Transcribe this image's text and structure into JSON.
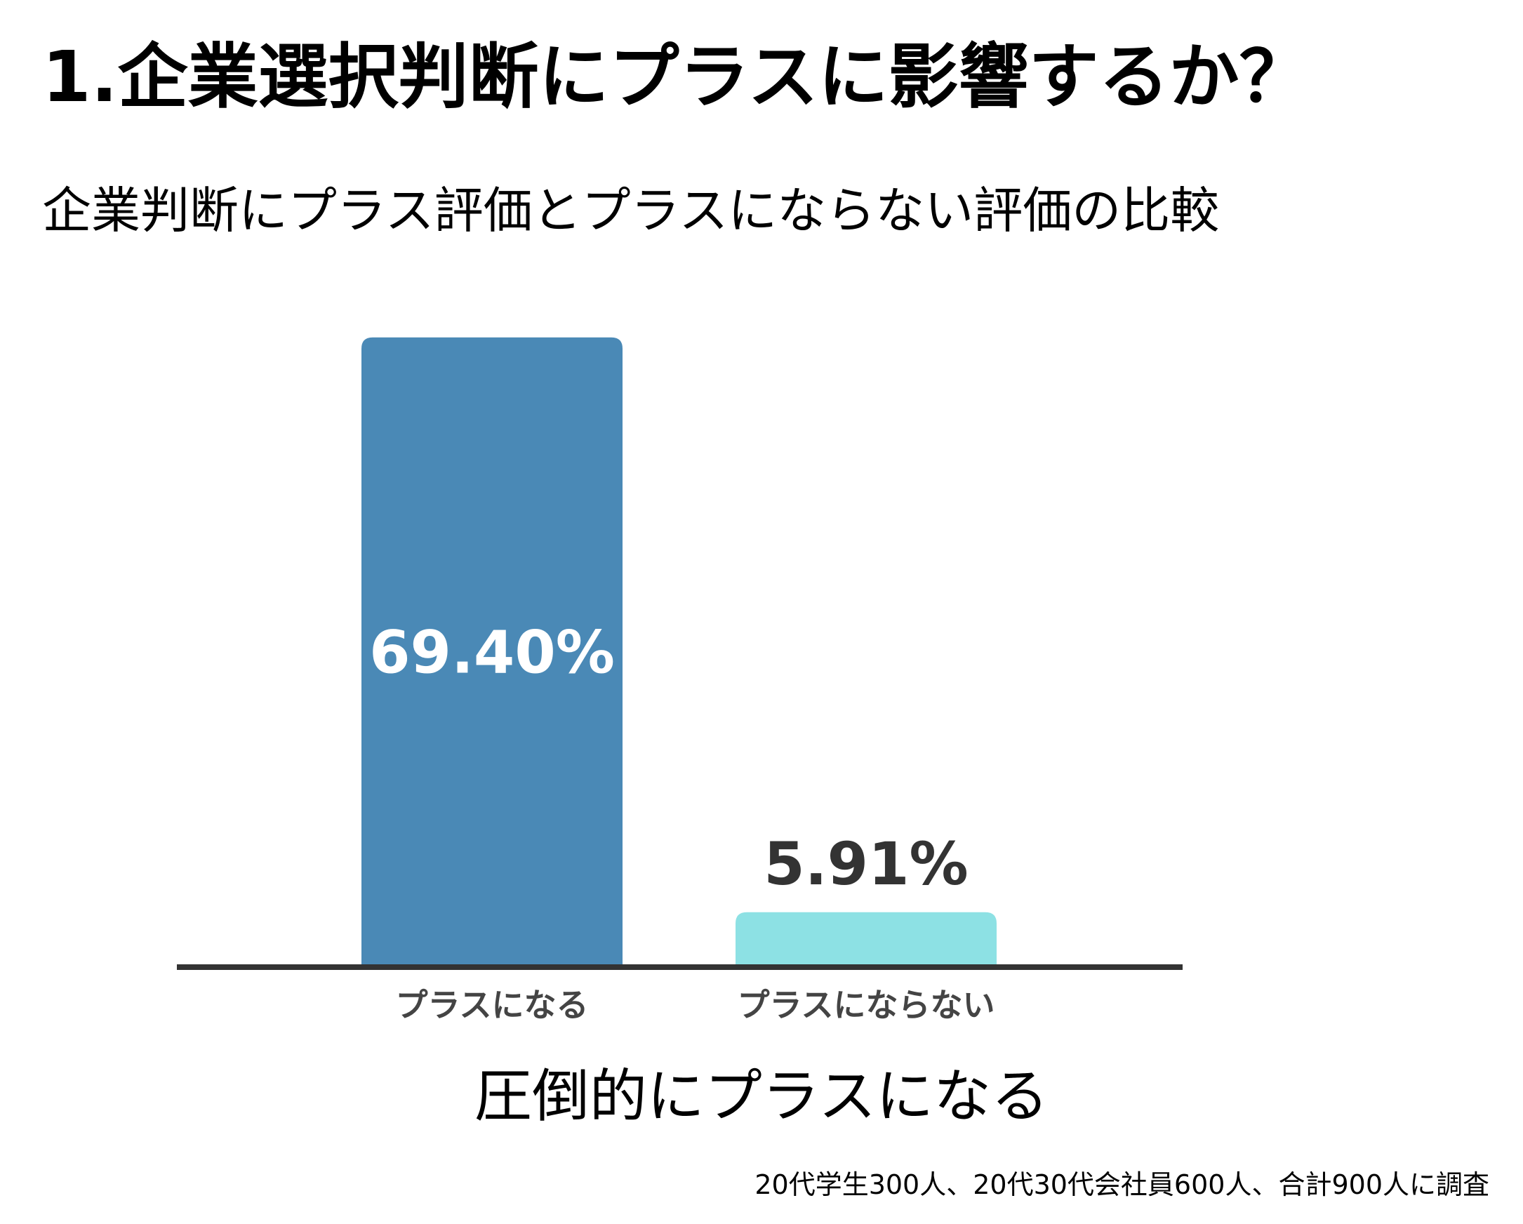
{
  "title": "1.企業選択判断にプラスに影響するか？",
  "subtitle": "企業判断にプラス評価とプラスにならない評価の比較",
  "conclusion": "圧倒的にプラスになる",
  "footnote": "20代学生300人、20代30代会社員600人、合計900人に調査",
  "chart_data": {
    "type": "bar",
    "title": "企業判断にプラス評価とプラスにならない評価の比較",
    "categories": [
      "プラスになる",
      "プラスにならない"
    ],
    "values": [
      69.4,
      5.91
    ],
    "data_labels": [
      "69.40%",
      "5.91%"
    ],
    "colors": [
      "#4a89b6",
      "#8de1e4"
    ],
    "label_colors": [
      "#ffffff",
      "#333333"
    ],
    "axis_color": "#333333",
    "tick_color": "#444444",
    "ylim": [
      0,
      70
    ],
    "grid": false,
    "legend": "none",
    "xlabel": "",
    "ylabel": ""
  }
}
